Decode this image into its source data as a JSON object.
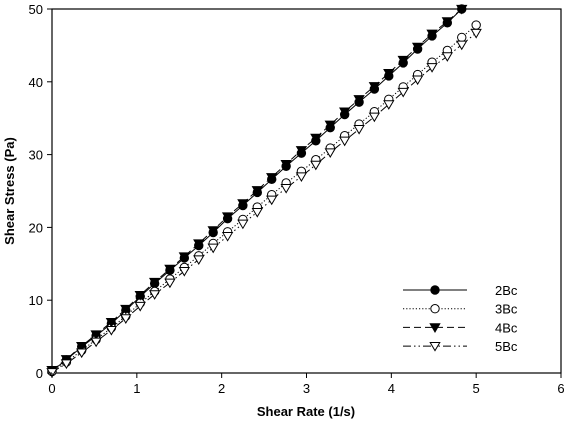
{
  "chart_data": {
    "type": "line",
    "xlabel": "Shear Rate (1/s)",
    "ylabel": "Shear Stress (Pa)",
    "xlim": [
      0,
      6
    ],
    "ylim": [
      0,
      50
    ],
    "xticks": [
      "0",
      "1",
      "2",
      "3",
      "4",
      "5",
      "6"
    ],
    "yticks": [
      "0",
      "10",
      "20",
      "30",
      "40",
      "50"
    ],
    "grid": false,
    "legend_position": "bottom-right",
    "series": [
      {
        "name": "2Bc",
        "marker": "filled-circle",
        "line": "solid",
        "x": [
          0,
          0.17,
          0.35,
          0.52,
          0.7,
          0.87,
          1.04,
          1.21,
          1.39,
          1.56,
          1.73,
          1.9,
          2.07,
          2.25,
          2.42,
          2.59,
          2.76,
          2.94,
          3.11,
          3.28,
          3.45,
          3.62,
          3.8,
          3.97,
          4.14,
          4.31,
          4.48,
          4.66,
          4.83
        ],
        "y": [
          0.3,
          1.8,
          3.6,
          5.1,
          6.8,
          8.6,
          10.5,
          12.3,
          14.1,
          15.8,
          17.5,
          19.3,
          21.2,
          23.0,
          24.8,
          26.6,
          28.4,
          30.2,
          31.9,
          33.7,
          35.5,
          37.2,
          39.0,
          40.8,
          42.6,
          44.5,
          46.3,
          48.1,
          50.0
        ]
      },
      {
        "name": "3Bc",
        "marker": "open-circle",
        "line": "dotted",
        "x": [
          0,
          0.17,
          0.35,
          0.52,
          0.7,
          0.87,
          1.04,
          1.21,
          1.39,
          1.56,
          1.73,
          1.9,
          2.07,
          2.25,
          2.42,
          2.59,
          2.76,
          2.94,
          3.11,
          3.28,
          3.45,
          3.62,
          3.8,
          3.97,
          4.14,
          4.31,
          4.48,
          4.66,
          4.83,
          5.0
        ],
        "y": [
          0.2,
          1.5,
          3.1,
          4.6,
          6.2,
          7.8,
          9.6,
          11.2,
          12.9,
          14.5,
          16.1,
          17.8,
          19.4,
          21.1,
          22.8,
          24.5,
          26.1,
          27.7,
          29.3,
          30.9,
          32.6,
          34.2,
          35.9,
          37.6,
          39.3,
          41.0,
          42.7,
          44.3,
          46.1,
          47.8
        ]
      },
      {
        "name": "4Bc",
        "marker": "filled-triangle-down",
        "line": "dashed",
        "x": [
          0,
          0.17,
          0.35,
          0.52,
          0.7,
          0.87,
          1.04,
          1.21,
          1.39,
          1.56,
          1.73,
          1.9,
          2.07,
          2.25,
          2.42,
          2.59,
          2.76,
          2.94,
          3.11,
          3.28,
          3.45,
          3.62,
          3.8,
          3.97,
          4.14,
          4.31,
          4.48,
          4.66,
          4.83
        ],
        "y": [
          0.4,
          1.9,
          3.7,
          5.3,
          7.0,
          8.8,
          10.7,
          12.5,
          14.3,
          16.0,
          17.8,
          19.6,
          21.5,
          23.3,
          25.1,
          26.9,
          28.7,
          30.6,
          32.3,
          34.1,
          35.9,
          37.6,
          39.4,
          41.2,
          43.0,
          44.8,
          46.6,
          48.3,
          50.0
        ]
      },
      {
        "name": "5Bc",
        "marker": "open-triangle-down",
        "line": "dash-dot-dot",
        "x": [
          0,
          0.17,
          0.35,
          0.52,
          0.7,
          0.87,
          1.04,
          1.21,
          1.39,
          1.56,
          1.73,
          1.9,
          2.07,
          2.25,
          2.42,
          2.59,
          2.76,
          2.94,
          3.11,
          3.28,
          3.45,
          3.62,
          3.8,
          3.97,
          4.14,
          4.31,
          4.48,
          4.66,
          4.83,
          5.0
        ],
        "y": [
          0.1,
          1.3,
          2.8,
          4.3,
          5.9,
          7.5,
          9.2,
          10.8,
          12.4,
          14.0,
          15.6,
          17.2,
          18.8,
          20.5,
          22.1,
          23.8,
          25.4,
          27.0,
          28.6,
          30.3,
          31.9,
          33.5,
          35.2,
          36.9,
          38.6,
          40.3,
          42.0,
          43.5,
          45.1,
          46.7
        ]
      }
    ]
  }
}
